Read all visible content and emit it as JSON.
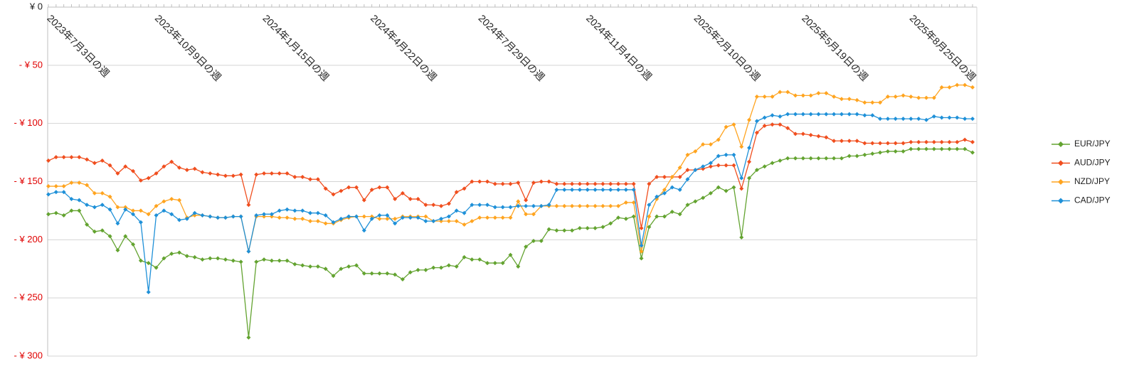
{
  "chart_data": {
    "type": "line",
    "categories": [
      "2023年7月3日の週",
      null,
      null,
      null,
      null,
      null,
      null,
      null,
      null,
      null,
      null,
      null,
      null,
      null,
      "2023年10月9日の週",
      null,
      null,
      null,
      null,
      null,
      null,
      null,
      null,
      null,
      null,
      null,
      null,
      null,
      "2024年1月15日の週",
      null,
      null,
      null,
      null,
      null,
      null,
      null,
      null,
      null,
      null,
      null,
      null,
      null,
      "2024年4月22日の週",
      null,
      null,
      null,
      null,
      null,
      null,
      null,
      null,
      null,
      null,
      null,
      null,
      null,
      "2024年7月29日の週",
      null,
      null,
      null,
      null,
      null,
      null,
      null,
      null,
      null,
      null,
      null,
      null,
      null,
      "2024年11月4日の週",
      null,
      null,
      null,
      null,
      null,
      null,
      null,
      null,
      null,
      null,
      null,
      null,
      null,
      "2025年2月10日の週",
      null,
      null,
      null,
      null,
      null,
      null,
      null,
      null,
      null,
      null,
      null,
      null,
      null,
      "2025年5月19日の週",
      null,
      null,
      null,
      null,
      null,
      null,
      null,
      null,
      null,
      null,
      null,
      null,
      null,
      "2025年8月25日の週",
      null,
      null,
      null,
      null,
      null,
      null,
      null,
      null
    ],
    "series": [
      {
        "name": "EUR/JPY",
        "color": "#63a330",
        "values": [
          -178,
          -177,
          -179,
          -175,
          -175,
          -187,
          -193,
          -192,
          -197,
          -209,
          -197,
          -204,
          -218,
          -220,
          -224,
          -216,
          -212,
          -211,
          -214,
          -215,
          -217,
          -216,
          -216,
          -217,
          -218,
          -219,
          -284,
          -219,
          -217,
          -218,
          -218,
          -218,
          -221,
          -222,
          -223,
          -223,
          -225,
          -231,
          -225,
          -223,
          -222,
          -229,
          -229,
          -229,
          -229,
          -230,
          -234,
          -228,
          -226,
          -226,
          -224,
          -224,
          -222,
          -223,
          -215,
          -217,
          -217,
          -220,
          -220,
          -220,
          -213,
          -223,
          -206,
          -201,
          -201,
          -191,
          -192,
          -192,
          -192,
          -190,
          -190,
          -190,
          -189,
          -186,
          -181,
          -182,
          -180,
          -216,
          -189,
          -180,
          -180,
          -176,
          -178,
          -170,
          -167,
          -164,
          -160,
          -155,
          -158,
          -155,
          -198,
          -147,
          -140,
          -137,
          -134,
          -132,
          -130,
          -130,
          -130,
          -130,
          -130,
          -130,
          -130,
          -130,
          -128,
          -128,
          -127,
          -126,
          -125,
          -124,
          -124,
          -124,
          -122,
          -122,
          -122,
          -122,
          -122,
          -122,
          -122,
          -122,
          -125
        ]
      },
      {
        "name": "AUD/JPY",
        "color": "#f04e1e",
        "values": [
          -132,
          -129,
          -129,
          -129,
          -129,
          -131,
          -134,
          -132,
          -136,
          -143,
          -137,
          -141,
          -149,
          -147,
          -143,
          -137,
          -133,
          -138,
          -140,
          -139,
          -142,
          -143,
          -144,
          -145,
          -145,
          -144,
          -170,
          -144,
          -143,
          -143,
          -143,
          -143,
          -146,
          -146,
          -148,
          -148,
          -156,
          -161,
          -158,
          -155,
          -155,
          -166,
          -157,
          -155,
          -155,
          -165,
          -160,
          -165,
          -165,
          -170,
          -170,
          -171,
          -169,
          -159,
          -156,
          -150,
          -150,
          -150,
          -152,
          -152,
          -152,
          -151,
          -166,
          -151,
          -150,
          -150,
          -152,
          -152,
          -152,
          -152,
          -152,
          -152,
          -152,
          -152,
          -152,
          -152,
          -152,
          -190,
          -152,
          -146,
          -146,
          -146,
          -146,
          -140,
          -140,
          -139,
          -137,
          -136,
          -136,
          -136,
          -156,
          -133,
          -108,
          -102,
          -101,
          -101,
          -104,
          -109,
          -109,
          -110,
          -111,
          -112,
          -115,
          -115,
          -115,
          -115,
          -117,
          -117,
          -117,
          -117,
          -117,
          -117,
          -116,
          -116,
          -116,
          -116,
          -116,
          -116,
          -116,
          -114,
          -116
        ]
      },
      {
        "name": "NZD/JPY",
        "color": "#ffa41f",
        "values": [
          -154,
          -154,
          -154,
          -151,
          -151,
          -153,
          -160,
          -160,
          -163,
          -172,
          -172,
          -175,
          -175,
          -178,
          -171,
          -167,
          -165,
          -166,
          -181,
          -179,
          -179,
          -180,
          -181,
          -181,
          -180,
          -180,
          -210,
          -180,
          -180,
          -180,
          -181,
          -181,
          -182,
          -182,
          -184,
          -184,
          -186,
          -186,
          -183,
          -181,
          -180,
          -180,
          -180,
          -182,
          -182,
          -182,
          -180,
          -180,
          -180,
          -180,
          -184,
          -184,
          -184,
          -184,
          -187,
          -184,
          -181,
          -181,
          -181,
          -181,
          -181,
          -167,
          -178,
          -178,
          -171,
          -171,
          -171,
          -171,
          -171,
          -171,
          -171,
          -171,
          -171,
          -171,
          -171,
          -168,
          -168,
          -210,
          -180,
          -165,
          -157,
          -146,
          -138,
          -127,
          -124,
          -118,
          -118,
          -114,
          -103,
          -101,
          -120,
          -97,
          -77,
          -77,
          -77,
          -73,
          -73,
          -76,
          -76,
          -76,
          -74,
          -74,
          -77,
          -79,
          -79,
          -80,
          -82,
          -82,
          -82,
          -77,
          -77,
          -76,
          -77,
          -78,
          -78,
          -78,
          -69,
          -69,
          -67,
          -67,
          -69
        ]
      },
      {
        "name": "CAD/JPY",
        "color": "#1e90d8",
        "values": [
          -161,
          -159,
          -159,
          -165,
          -166,
          -170,
          -172,
          -170,
          -174,
          -186,
          -174,
          -178,
          -185,
          -245,
          -179,
          -175,
          -178,
          -183,
          -182,
          -177,
          -179,
          -180,
          -181,
          -181,
          -180,
          -180,
          -210,
          -179,
          -178,
          -178,
          -175,
          -174,
          -175,
          -175,
          -177,
          -177,
          -179,
          -185,
          -182,
          -180,
          -180,
          -192,
          -182,
          -179,
          -179,
          -186,
          -181,
          -181,
          -181,
          -184,
          -184,
          -182,
          -180,
          -175,
          -177,
          -170,
          -170,
          -170,
          -172,
          -172,
          -172,
          -171,
          -171,
          -171,
          -171,
          -170,
          -157,
          -157,
          -157,
          -157,
          -157,
          -157,
          -157,
          -157,
          -157,
          -157,
          -157,
          -205,
          -170,
          -163,
          -160,
          -155,
          -157,
          -148,
          -140,
          -137,
          -134,
          -128,
          -127,
          -127,
          -147,
          -121,
          -98,
          -95,
          -93,
          -94,
          -92,
          -92,
          -92,
          -92,
          -92,
          -92,
          -92,
          -92,
          -92,
          -92,
          -93,
          -93,
          -96,
          -96,
          -96,
          -96,
          -96,
          -96,
          -97,
          -94,
          -95,
          -95,
          -95,
          -96,
          -96
        ]
      }
    ],
    "ylim": [
      -300,
      0
    ],
    "yticks": [
      {
        "value": 0,
        "label": "¥ 0"
      },
      {
        "value": -50,
        "label": "- ¥ 50"
      },
      {
        "value": -100,
        "label": "- ¥ 100"
      },
      {
        "value": -150,
        "label": "- ¥ 150"
      },
      {
        "value": -200,
        "label": "- ¥ 200"
      },
      {
        "value": -250,
        "label": "- ¥ 250"
      },
      {
        "value": -300,
        "label": "- ¥ 300"
      }
    ],
    "negative_tick_color": "#e00000",
    "grid": true,
    "legend": "right"
  }
}
